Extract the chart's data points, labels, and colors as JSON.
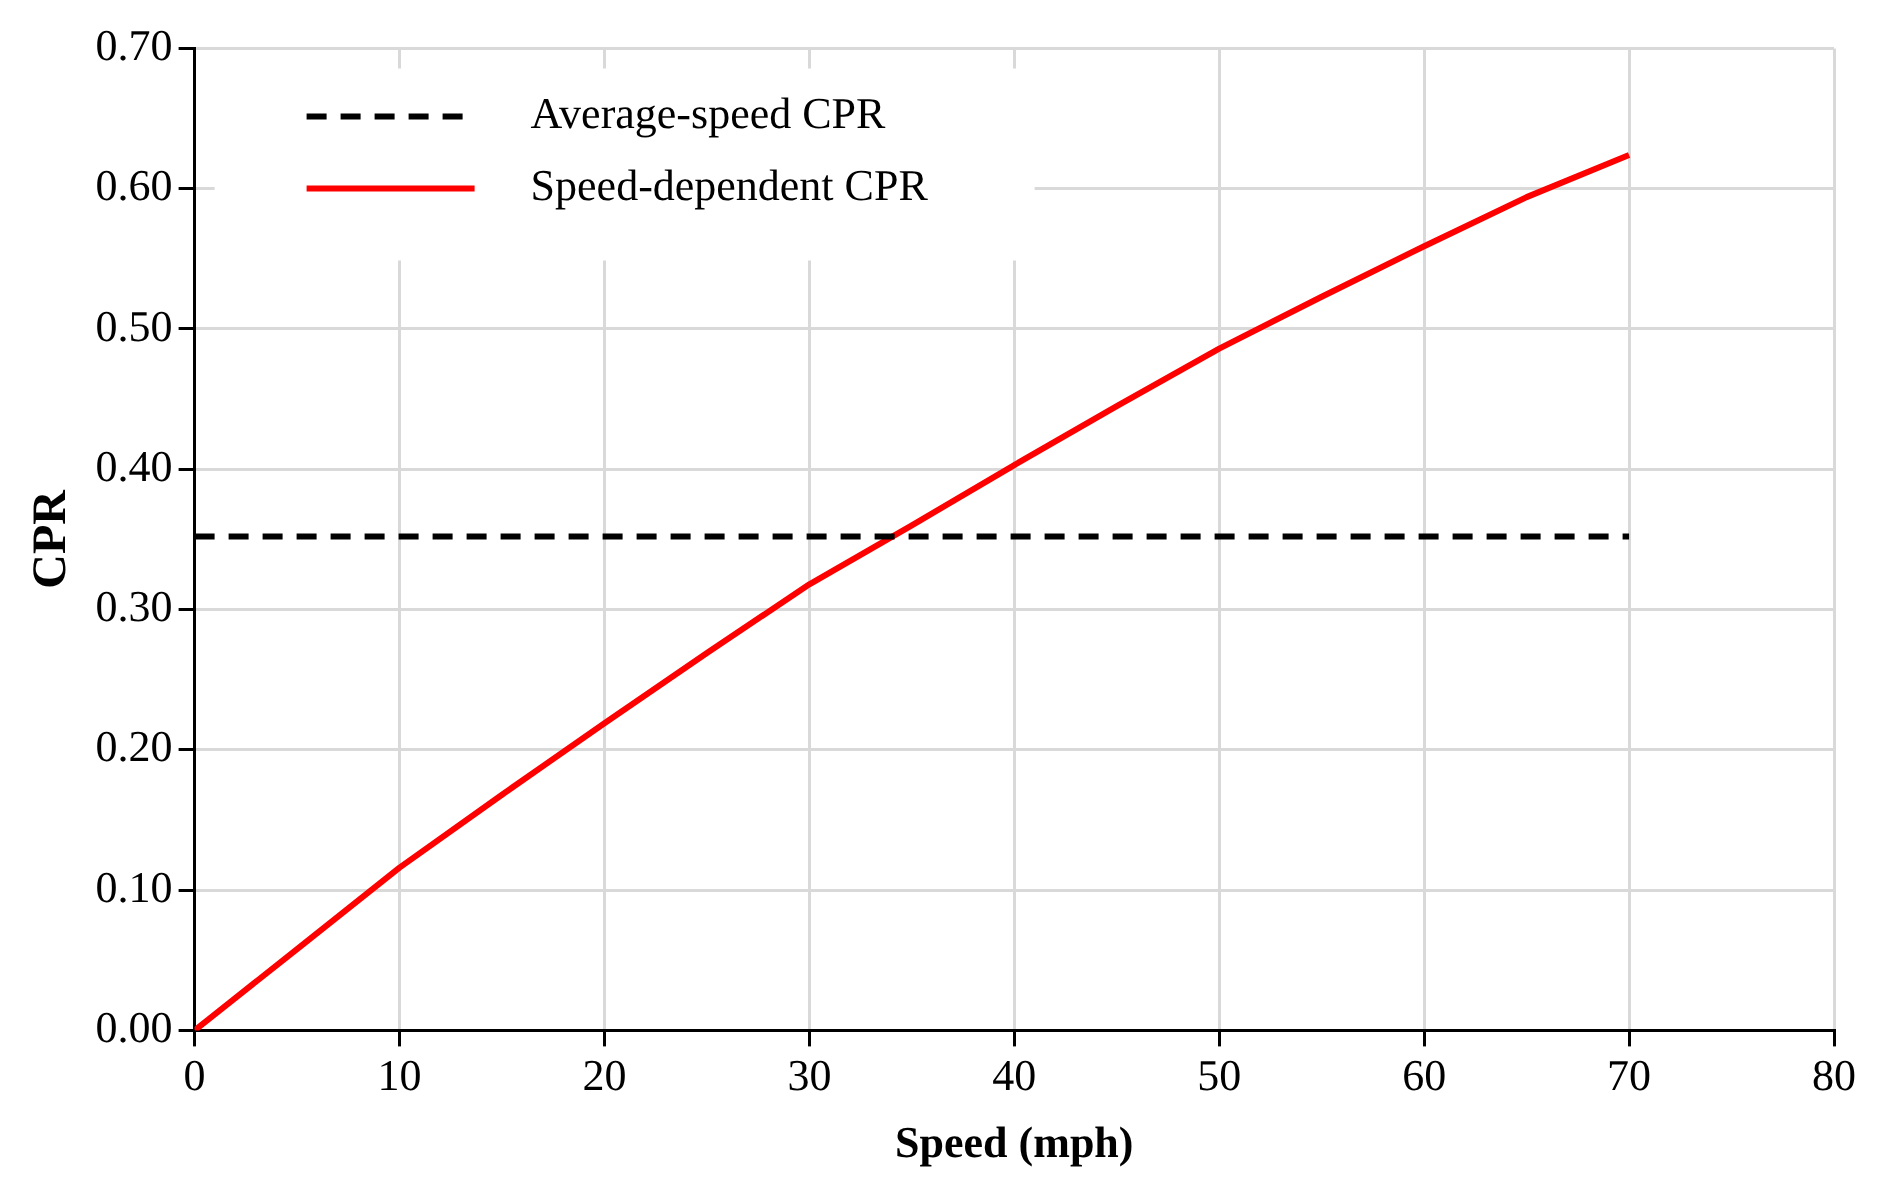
{
  "chart_data": {
    "type": "line",
    "xlabel": "Speed (mph)",
    "ylabel": "CPR",
    "xlim": [
      0,
      80
    ],
    "xticks": [
      0,
      10,
      20,
      30,
      40,
      50,
      60,
      70,
      80
    ],
    "ylim": [
      0,
      0.7
    ],
    "yticks": [
      {
        "value": 0,
        "label": "0.00"
      },
      {
        "value": 0.1,
        "label": "0.10"
      },
      {
        "value": 0.2,
        "label": "0.20"
      },
      {
        "value": 0.3,
        "label": "0.30"
      },
      {
        "value": 0.4,
        "label": "0.40"
      },
      {
        "value": 0.5,
        "label": "0.50"
      },
      {
        "value": 0.6,
        "label": "0.60"
      },
      {
        "value": 0.7,
        "label": "0.70"
      }
    ],
    "grid": true,
    "legend": "top left",
    "marker": "none",
    "series": [
      {
        "name": "Average-speed CPR",
        "color": "#000000",
        "line_style": "dashed",
        "x": [
          0,
          70
        ],
        "values": [
          0.352,
          0.352
        ]
      },
      {
        "name": "Speed-dependent CPR",
        "color": "#ff0000",
        "line_style": "solid",
        "x": [
          0,
          5,
          10,
          15,
          20,
          25,
          30,
          35,
          40,
          45,
          50,
          55,
          60,
          65,
          70
        ],
        "values": [
          0,
          0.058,
          0.116,
          0.168,
          0.219,
          0.269,
          0.318,
          0.36,
          0.403,
          0.445,
          0.486,
          0.523,
          0.559,
          0.594,
          0.624
        ]
      }
    ]
  }
}
